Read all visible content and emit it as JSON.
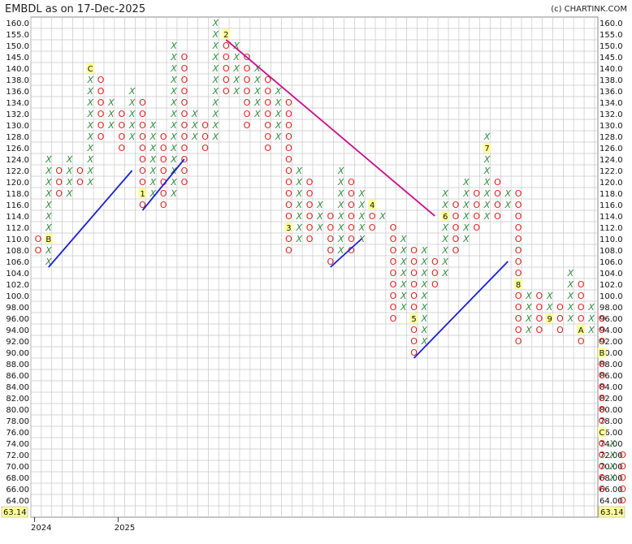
{
  "title": "EMBDL as on 17-Dec-2025",
  "credit": "(c) CHARTINK.COM",
  "colors": {
    "x": "#2e8b3c",
    "o": "#e0201c",
    "bull_trend": "#1a1fd0",
    "bear_trend": "#c8108c",
    "grid": "#c8c8c8",
    "last_price_bg": "#ffff99"
  },
  "chart_data": {
    "type": "point-and-figure",
    "box_size": 2,
    "y_ticks": [
      "160.0",
      "155.0",
      "150.0",
      "145.0",
      "140.0",
      "138.0",
      "136.0",
      "134.0",
      "132.0",
      "130.0",
      "128.0",
      "126.0",
      "124.0",
      "122.0",
      "120.0",
      "118.0",
      "116.0",
      "114.0",
      "112.0",
      "110.0",
      "108.0",
      "106.0",
      "104.0",
      "102.0",
      "100.0",
      "98.00",
      "96.00",
      "94.00",
      "92.00",
      "90.00",
      "88.00",
      "86.00",
      "84.00",
      "82.00",
      "80.00",
      "78.00",
      "76.00",
      "74.00",
      "72.00",
      "70.00",
      "68.00",
      "66.00",
      "64.00"
    ],
    "last_price": "63.14",
    "x_labels": [
      {
        "column": 0,
        "label": "2024"
      },
      {
        "column": 8,
        "label": "2025"
      }
    ],
    "columns": [
      {
        "type": "O",
        "from": "108.0",
        "to": "110.0"
      },
      {
        "type": "X",
        "from": "106.0",
        "to": "124.0",
        "month_marks": {
          "110.0": "B"
        }
      },
      {
        "type": "O",
        "from": "118.0",
        "to": "122.0"
      },
      {
        "type": "X",
        "from": "118.0",
        "to": "124.0"
      },
      {
        "type": "O",
        "from": "120.0",
        "to": "122.0"
      },
      {
        "type": "X",
        "from": "120.0",
        "to": "140.0",
        "month_marks": {
          "140.0": "C"
        }
      },
      {
        "type": "O",
        "from": "128.0",
        "to": "138.0"
      },
      {
        "type": "X",
        "from": "130.0",
        "to": "134.0"
      },
      {
        "type": "O",
        "from": "126.0",
        "to": "132.0"
      },
      {
        "type": "X",
        "from": "128.0",
        "to": "136.0"
      },
      {
        "type": "O",
        "from": "116.0",
        "to": "134.0",
        "month_marks": {
          "118.0": "1"
        }
      },
      {
        "type": "X",
        "from": "118.0",
        "to": "130.0"
      },
      {
        "type": "O",
        "from": "116.0",
        "to": "128.0"
      },
      {
        "type": "X",
        "from": "118.0",
        "to": "150.0"
      },
      {
        "type": "O",
        "from": "120.0",
        "to": "145.0"
      },
      {
        "type": "X",
        "from": "128.0",
        "to": "132.0"
      },
      {
        "type": "O",
        "from": "126.0",
        "to": "130.0"
      },
      {
        "type": "X",
        "from": "128.0",
        "to": "160.0"
      },
      {
        "type": "O",
        "from": "136.0",
        "to": "155.0",
        "month_marks": {
          "155.0": "2"
        }
      },
      {
        "type": "X",
        "from": "136.0",
        "to": "150.0"
      },
      {
        "type": "O",
        "from": "130.0",
        "to": "145.0"
      },
      {
        "type": "X",
        "from": "132.0",
        "to": "140.0"
      },
      {
        "type": "O",
        "from": "126.0",
        "to": "138.0"
      },
      {
        "type": "X",
        "from": "128.0",
        "to": "136.0"
      },
      {
        "type": "O",
        "from": "108.0",
        "to": "134.0",
        "month_marks": {
          "112.0": "3"
        }
      },
      {
        "type": "X",
        "from": "110.0",
        "to": "122.0"
      },
      {
        "type": "O",
        "from": "110.0",
        "to": "120.0"
      },
      {
        "type": "X",
        "from": "112.0",
        "to": "116.0"
      },
      {
        "type": "O",
        "from": "106.0",
        "to": "114.0"
      },
      {
        "type": "X",
        "from": "108.0",
        "to": "122.0"
      },
      {
        "type": "O",
        "from": "108.0",
        "to": "120.0"
      },
      {
        "type": "X",
        "from": "110.0",
        "to": "118.0"
      },
      {
        "type": "O",
        "from": "112.0",
        "to": "116.0",
        "month_marks": {
          "116.0": "4"
        }
      },
      {
        "type": "X",
        "from": "114.0",
        "to": "114.0"
      },
      {
        "type": "O",
        "from": "96.0",
        "to": "112.0"
      },
      {
        "type": "X",
        "from": "98.0",
        "to": "110.0"
      },
      {
        "type": "O",
        "from": "90.0",
        "to": "108.0",
        "month_marks": {
          "96.0": "5"
        }
      },
      {
        "type": "X",
        "from": "92.0",
        "to": "108.0"
      },
      {
        "type": "O",
        "from": "102.0",
        "to": "106.0"
      },
      {
        "type": "X",
        "from": "104.0",
        "to": "118.0",
        "month_marks": {
          "114.0": "6"
        }
      },
      {
        "type": "O",
        "from": "108.0",
        "to": "116.0"
      },
      {
        "type": "X",
        "from": "110.0",
        "to": "120.0"
      },
      {
        "type": "O",
        "from": "112.0",
        "to": "118.0"
      },
      {
        "type": "X",
        "from": "114.0",
        "to": "128.0",
        "month_marks": {
          "126.0": "7"
        }
      },
      {
        "type": "O",
        "from": "114.0",
        "to": "120.0"
      },
      {
        "type": "X",
        "from": "116.0",
        "to": "118.0"
      },
      {
        "type": "O",
        "from": "92.0",
        "to": "118.0",
        "month_marks": {
          "102.0": "8"
        }
      },
      {
        "type": "X",
        "from": "94.0",
        "to": "100.0"
      },
      {
        "type": "O",
        "from": "94.0",
        "to": "100.0"
      },
      {
        "type": "X",
        "from": "96.0",
        "to": "100.0",
        "month_marks": {
          "96.0": "9"
        }
      },
      {
        "type": "O",
        "from": "94.0",
        "to": "98.0"
      },
      {
        "type": "X",
        "from": "96.0",
        "to": "104.0"
      },
      {
        "type": "O",
        "from": "92.0",
        "to": "102.0",
        "month_marks": {
          "94.0": "A"
        }
      },
      {
        "type": "X",
        "from": "94.0",
        "to": "98.0"
      },
      {
        "type": "O",
        "from": "66.0",
        "to": "96.0",
        "month_marks": {
          "90.0": "B",
          "76.0": "C"
        }
      },
      {
        "type": "X",
        "from": "68.0",
        "to": "74.0"
      },
      {
        "type": "O",
        "from": "64.0",
        "to": "72.0"
      }
    ],
    "trend_lines": [
      {
        "kind": "bullish",
        "from": {
          "column": 1,
          "value": "106.0"
        },
        "to": {
          "column": 9,
          "value": "122.0"
        }
      },
      {
        "kind": "bullish",
        "from": {
          "column": 10,
          "value": "116.0"
        },
        "to": {
          "column": 14,
          "value": "124.0"
        }
      },
      {
        "kind": "bearish",
        "from": {
          "column": 18,
          "value": "155.0"
        },
        "to": {
          "column": 38,
          "value": "114.0"
        }
      },
      {
        "kind": "bullish",
        "from": {
          "column": 28,
          "value": "106.0"
        },
        "to": {
          "column": 31,
          "value": "110.0"
        }
      },
      {
        "kind": "bullish",
        "from": {
          "column": 36,
          "value": "90.0"
        },
        "to": {
          "column": 45,
          "value": "106.0"
        }
      }
    ]
  }
}
